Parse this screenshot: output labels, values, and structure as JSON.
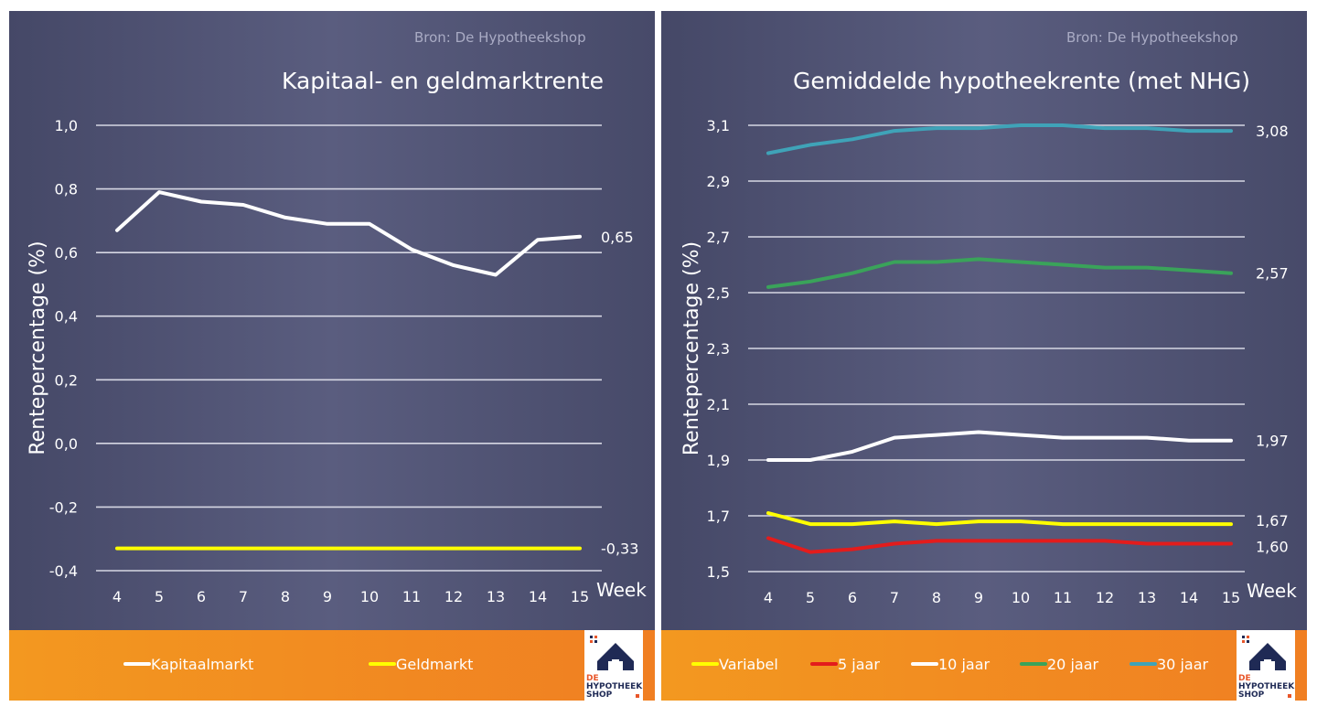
{
  "left": {
    "source": "Bron: De Hypotheekshop",
    "title": "Kapitaal- en geldmarktrente",
    "ylabel": "Rentepercentage (%)",
    "xlabel": "Week",
    "y_tick_labels": [
      "1,0",
      "0,8",
      "0,6",
      "0,4",
      "0,2",
      "0,0",
      "-0,2",
      "-0,4"
    ],
    "end_labels": [
      "0,65",
      "-0,33"
    ],
    "legend": [
      "Kapitaalmarkt",
      "Geldmarkt"
    ]
  },
  "right": {
    "source": "Bron: De Hypotheekshop",
    "title": "Gemiddelde hypotheekrente (met NHG)",
    "ylabel": "Rentepercentage (%)",
    "xlabel": "Week",
    "y_tick_labels": [
      "3,1",
      "2,9",
      "2,7",
      "2,5",
      "2,3",
      "2,1",
      "1,9",
      "1,7",
      "1,5"
    ],
    "end_labels": [
      "3,08",
      "2,57",
      "1,97",
      "1,67",
      "1,60"
    ],
    "legend": [
      "Variabel",
      "5 jaar",
      "10 jaar",
      "20 jaar",
      "30 jaar"
    ]
  },
  "logo": {
    "line1": "DE",
    "line2": "HYPOTHEEK",
    "line3": "SHOP"
  },
  "colors": {
    "kapitaalmarkt": "#ffffff",
    "geldmarkt": "#ffff00",
    "variabel": "#ffff00",
    "5jaar": "#e31c1c",
    "10jaar": "#ffffff",
    "20jaar": "#3aa35a",
    "30jaar": "#3fa3b8",
    "band": "#f28a21",
    "logo_navy": "#1f2a55",
    "logo_orange": "#e8562a"
  },
  "chart_data": [
    {
      "type": "line",
      "title": "Kapitaal- en geldmarktrente",
      "xlabel": "Week",
      "ylabel": "Rentepercentage (%)",
      "x": [
        4,
        5,
        6,
        7,
        8,
        9,
        10,
        11,
        12,
        13,
        14,
        15
      ],
      "ylim": [
        -0.4,
        1.0
      ],
      "y_ticks": [
        -0.4,
        -0.2,
        0.0,
        0.2,
        0.4,
        0.6,
        0.8,
        1.0
      ],
      "grid": true,
      "legend": "bottom",
      "series": [
        {
          "name": "Kapitaalmarkt",
          "color": "#ffffff",
          "values": [
            0.67,
            0.79,
            0.76,
            0.75,
            0.71,
            0.69,
            0.69,
            0.61,
            0.56,
            0.53,
            0.64,
            0.65
          ]
        },
        {
          "name": "Geldmarkt",
          "color": "#ffff00",
          "values": [
            -0.33,
            -0.33,
            -0.33,
            -0.33,
            -0.33,
            -0.33,
            -0.33,
            -0.33,
            -0.33,
            -0.33,
            -0.33,
            -0.33
          ]
        }
      ]
    },
    {
      "type": "line",
      "title": "Gemiddelde hypotheekrente (met NHG)",
      "xlabel": "Week",
      "ylabel": "Rentepercentage (%)",
      "x": [
        4,
        5,
        6,
        7,
        8,
        9,
        10,
        11,
        12,
        13,
        14,
        15
      ],
      "ylim": [
        1.5,
        3.1
      ],
      "y_ticks": [
        1.5,
        1.7,
        1.9,
        2.1,
        2.3,
        2.5,
        2.7,
        2.9,
        3.1
      ],
      "grid": true,
      "legend": "bottom",
      "series": [
        {
          "name": "Variabel",
          "color": "#ffff00",
          "values": [
            1.71,
            1.67,
            1.67,
            1.68,
            1.67,
            1.68,
            1.68,
            1.67,
            1.67,
            1.67,
            1.67,
            1.67
          ]
        },
        {
          "name": "5 jaar",
          "color": "#e31c1c",
          "values": [
            1.62,
            1.57,
            1.58,
            1.6,
            1.61,
            1.61,
            1.61,
            1.61,
            1.61,
            1.6,
            1.6,
            1.6
          ]
        },
        {
          "name": "10 jaar",
          "color": "#ffffff",
          "values": [
            1.9,
            1.9,
            1.93,
            1.98,
            1.99,
            2.0,
            1.99,
            1.98,
            1.98,
            1.98,
            1.97,
            1.97
          ]
        },
        {
          "name": "20 jaar",
          "color": "#3aa35a",
          "values": [
            2.52,
            2.54,
            2.57,
            2.61,
            2.61,
            2.62,
            2.61,
            2.6,
            2.59,
            2.59,
            2.58,
            2.57
          ]
        },
        {
          "name": "30 jaar",
          "color": "#3fa3b8",
          "values": [
            3.0,
            3.03,
            3.05,
            3.08,
            3.09,
            3.09,
            3.1,
            3.1,
            3.09,
            3.09,
            3.08,
            3.08
          ]
        }
      ]
    }
  ]
}
